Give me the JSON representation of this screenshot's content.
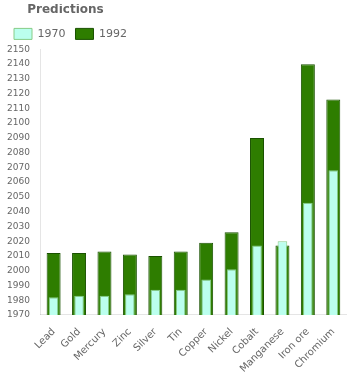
{
  "chart_data": {
    "type": "bar",
    "legend_title": "Predictions",
    "categories": [
      "Lead",
      "Gold",
      "Mercury",
      "Zinc",
      "Silver",
      "Tin",
      "Copper",
      "Nickel",
      "Cobalt",
      "Manganese",
      "Iron ore",
      "Chromium"
    ],
    "series": [
      {
        "name": "1970",
        "color": "#bbffee",
        "values": [
          1982,
          1983,
          1983,
          1984,
          1987,
          1987,
          1994,
          2001,
          2017,
          2020,
          2046,
          2068
        ]
      },
      {
        "name": "1992",
        "color": "#2e7d00",
        "values": [
          2012,
          2012,
          2013,
          2011,
          2010,
          2013,
          2019,
          2026,
          2090,
          2017,
          2140,
          2116
        ]
      }
    ],
    "ylim": [
      1970,
      2150
    ],
    "yticks": [
      1970,
      1980,
      1990,
      2000,
      2010,
      2020,
      2030,
      2040,
      2050,
      2060,
      2070,
      2080,
      2090,
      2100,
      2110,
      2120,
      2130,
      2140,
      2150
    ],
    "grid": false,
    "legend": "top-left"
  }
}
